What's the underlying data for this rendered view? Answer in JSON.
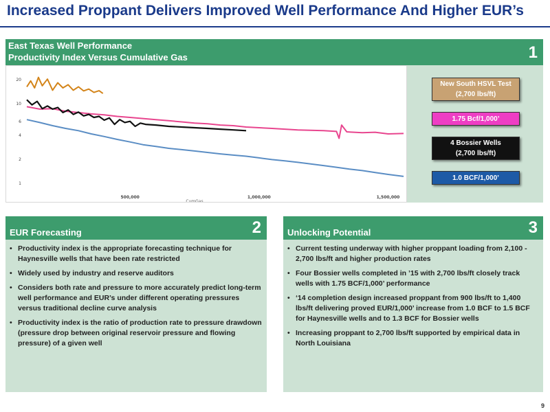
{
  "page": {
    "title": "Increased Proppant Delivers Improved Well Performance And Higher EUR’s",
    "page_number": "9"
  },
  "panel1": {
    "number": "1",
    "title_line1": "East Texas Well Performance",
    "title_line2": "Productivity Index Versus Cumulative Gas"
  },
  "legend": {
    "items": [
      {
        "line1": "New South HSVL Test",
        "line2": "(2,700 lbs/ft)",
        "bg": "#c8a273",
        "fg": "#ffffff"
      },
      {
        "line1": "1.75 Bcf/1,000’",
        "line2": "",
        "bg": "#ee3ec4",
        "fg": "#ffffff"
      },
      {
        "line1": "4 Bossier Wells",
        "line2": "(2,700 lbs/ft)",
        "bg": "#111111",
        "fg": "#ffffff"
      },
      {
        "line1": "1.0 BCF/1,000’",
        "line2": "",
        "bg": "#1d5aa6",
        "fg": "#ffffff"
      }
    ]
  },
  "chart_data": {
    "type": "line",
    "xlabel": "CumGas",
    "x_ticks": [
      "500,000",
      "1,000,000",
      "1,500,000"
    ],
    "x_tick_values": [
      500000,
      1000000,
      1500000
    ],
    "xlim": [
      100000,
      1560000
    ],
    "ylabel": "",
    "y_ticks": [
      "20",
      "10",
      "6",
      "4",
      "2",
      "1"
    ],
    "y_tick_values": [
      20,
      10,
      6,
      4,
      2,
      1
    ],
    "ylim": [
      0.7,
      24
    ],
    "y_scale": "log",
    "grid": false,
    "series": [
      {
        "color": "#d38419",
        "x": [
          100000,
          115000,
          130000,
          145000,
          160000,
          180000,
          200000,
          220000,
          240000,
          260000,
          280000,
          300000,
          320000,
          340000,
          360000,
          380000,
          395000
        ],
        "y": [
          16,
          19,
          15.5,
          21,
          16.5,
          20,
          14.5,
          18,
          15.5,
          17,
          14.5,
          16,
          14.2,
          15,
          13.6,
          14.3,
          13.2
        ]
      },
      {
        "color": "#e8458e",
        "x": [
          100000,
          150000,
          200000,
          250000,
          300000,
          350000,
          400000,
          450000,
          500000,
          550000,
          600000,
          650000,
          700000,
          750000,
          800000,
          850000,
          900000,
          950000,
          1000000,
          1050000,
          1100000,
          1150000,
          1200000,
          1250000,
          1300000,
          1310000,
          1320000,
          1340000,
          1400000,
          1450000,
          1500000,
          1560000
        ],
        "y": [
          9,
          8.4,
          8.5,
          7.9,
          7.6,
          7.3,
          7.1,
          6.8,
          6.6,
          6.4,
          6.2,
          6.0,
          5.8,
          5.6,
          5.5,
          5.3,
          5.2,
          5.0,
          4.9,
          4.8,
          4.7,
          4.6,
          4.55,
          4.5,
          4.4,
          3.6,
          5.3,
          4.35,
          4.25,
          4.3,
          4.1,
          4.15
        ]
      },
      {
        "color": "#111111",
        "x": [
          100000,
          120000,
          140000,
          160000,
          180000,
          200000,
          220000,
          240000,
          260000,
          280000,
          300000,
          320000,
          340000,
          360000,
          380000,
          400000,
          420000,
          440000,
          460000,
          480000,
          500000,
          520000,
          540000,
          560000,
          600000,
          650000,
          700000,
          750000,
          800000,
          850000,
          900000,
          950000
        ],
        "y": [
          11,
          9.5,
          10.5,
          8.5,
          9.2,
          8.4,
          8.8,
          7.6,
          8.2,
          7.2,
          7.7,
          6.9,
          7.2,
          6.6,
          6.8,
          6.1,
          6.5,
          5.4,
          6.2,
          5.7,
          5.9,
          5.1,
          5.6,
          5.4,
          5.3,
          5.1,
          5.0,
          4.9,
          4.8,
          4.7,
          4.6,
          4.5
        ]
      },
      {
        "color": "#5a8dc4",
        "x": [
          100000,
          150000,
          200000,
          250000,
          300000,
          350000,
          400000,
          450000,
          500000,
          550000,
          600000,
          650000,
          700000,
          750000,
          800000,
          850000,
          900000,
          950000,
          1000000,
          1050000,
          1100000,
          1150000,
          1200000,
          1250000,
          1300000,
          1350000,
          1400000,
          1450000,
          1500000,
          1560000
        ],
        "y": [
          6.2,
          5.7,
          5.2,
          4.8,
          4.5,
          4.1,
          3.8,
          3.5,
          3.25,
          3.0,
          2.85,
          2.7,
          2.6,
          2.5,
          2.4,
          2.3,
          2.22,
          2.15,
          2.05,
          1.95,
          1.88,
          1.8,
          1.72,
          1.64,
          1.56,
          1.48,
          1.42,
          1.34,
          1.27,
          1.2
        ]
      }
    ]
  },
  "panel2": {
    "number": "2",
    "title": "EUR Forecasting",
    "bullets": [
      "Productivity index is the appropriate forecasting technique for Haynesville wells that have been rate restricted",
      "Widely used by industry and reserve auditors",
      "Considers both rate and pressure to more accurately predict long-term well performance and EUR’s under different operating pressures versus traditional decline curve analysis",
      "Productivity index is the ratio of production rate to pressure drawdown (pressure drop between original reservoir pressure and flowing pressure) of a given well"
    ]
  },
  "panel3": {
    "number": "3",
    "title": "Unlocking Potential",
    "bullets": [
      "Current testing underway with higher proppant loading from 2,100 - 2,700  lbs/ft and higher production rates",
      "Four Bossier wells completed in ’15 with 2,700 lbs/ft closely track wells with 1.75 BCF/1,000’ performance",
      "‘14 completion design increased proppant from 900 lbs/ft to 1,400 lbs/ft delivering proved EUR/1,000’ increase from 1.0 BCF to 1.5 BCF for Haynesville wells and to 1.3 BCF for Bossier wells",
      "Increasing proppant to 2,700 lbs/ft supported by empirical data in North Louisiana"
    ]
  }
}
